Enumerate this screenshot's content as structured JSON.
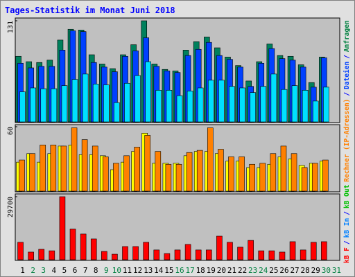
{
  "title": "Tages-Statistik im Monat Juni 2018",
  "legend": [
    {
      "text": "kB F",
      "color": "#ff0000"
    },
    {
      "text": "/",
      "color": "#0000ff"
    },
    {
      "text": "kB In",
      "color": "#0080ff"
    },
    {
      "text": "/",
      "color": "#0000ff"
    },
    {
      "text": "kB Out",
      "color": "#00c000"
    },
    {
      "text": "Rechner (IP-Adressen)",
      "color": "#ff8000"
    },
    {
      "text": "/",
      "color": "#0000ff"
    },
    {
      "text": "Dateien",
      "color": "#0040ff"
    },
    {
      "text": "/",
      "color": "#0000ff"
    },
    {
      "text": "Anfragen",
      "color": "#008040"
    }
  ],
  "chart_data": [
    {
      "type": "bar",
      "ylim": [
        0,
        131
      ],
      "yticks": [
        131
      ],
      "series": [
        {
          "name": "Anfragen",
          "color": "#00805c",
          "values": [
            85,
            78,
            77,
            80,
            106,
            120,
            119,
            87,
            75,
            69,
            87,
            100,
            131,
            75,
            68,
            66,
            93,
            104,
            110,
            96,
            84,
            73,
            53,
            78,
            101,
            86,
            85,
            74,
            51,
            84,
            null
          ]
        },
        {
          "name": "Dateien",
          "color": "#0040ff",
          "values": [
            76,
            70,
            72,
            72,
            93,
            118,
            117,
            77,
            71,
            65,
            85,
            92,
            109,
            72,
            66,
            64,
            86,
            94,
            103,
            86,
            81,
            71,
            46,
            76,
            95,
            82,
            80,
            71,
            45,
            83,
            null
          ]
        },
        {
          "color": "#00e0ff",
          "values": [
            39,
            44,
            43,
            43,
            47,
            55,
            62,
            49,
            48,
            25,
            50,
            60,
            78,
            41,
            41,
            34,
            40,
            44,
            54,
            54,
            46,
            44,
            38,
            46,
            62,
            42,
            47,
            41,
            27,
            45,
            null
          ]
        }
      ]
    },
    {
      "type": "bar",
      "ylim": [
        0,
        60
      ],
      "yticks": [
        60
      ],
      "series": [
        {
          "color": "#ffff00",
          "values": [
            27,
            35,
            27,
            35,
            42,
            43,
            34,
            34,
            33,
            20,
            27,
            37,
            54,
            26,
            26,
            26,
            33,
            37,
            37,
            35,
            28,
            28,
            22,
            22,
            25,
            32,
            30,
            24,
            26,
            28,
            null
          ]
        },
        {
          "name": "Rechner (IP-Adressen)",
          "color": "#ff8000",
          "values": [
            29,
            35,
            43,
            43,
            42,
            59,
            48,
            42,
            32,
            26,
            33,
            41,
            52,
            37,
            25,
            25,
            36,
            38,
            59,
            39,
            32,
            32,
            25,
            26,
            35,
            42,
            35,
            22,
            26,
            29,
            null
          ]
        }
      ]
    },
    {
      "type": "bar",
      "ylim": [
        0,
        29700
      ],
      "yticks": [
        29700
      ],
      "categories": [
        "1",
        "2",
        "3",
        "4",
        "5",
        "6",
        "7",
        "8",
        "9",
        "10",
        "11",
        "12",
        "13",
        "14",
        "15",
        "16",
        "17",
        "18",
        "19",
        "20",
        "21",
        "22",
        "23",
        "24",
        "25",
        "26",
        "27",
        "28",
        "29",
        "30",
        "31"
      ],
      "category_colors": [
        "#000000",
        "#008040",
        "#008040",
        "#000000",
        "#000000",
        "#000000",
        "#000000",
        "#000000",
        "#008040",
        "#008040",
        "#000000",
        "#000000",
        "#000000",
        "#000000",
        "#000000",
        "#008040",
        "#008040",
        "#000000",
        "#000000",
        "#000000",
        "#000000",
        "#000000",
        "#008040",
        "#008040",
        "#000000",
        "#000000",
        "#000000",
        "#000000",
        "#000000",
        "#008040",
        "#008040"
      ],
      "series": [
        {
          "name": "kB F",
          "color": "#ff0000",
          "values": [
            8200,
            3600,
            4900,
            4200,
            29700,
            14400,
            12100,
            9800,
            3900,
            2600,
            6200,
            6200,
            8200,
            4600,
            2900,
            4600,
            7200,
            4600,
            4600,
            11100,
            8200,
            5900,
            9100,
            4200,
            4200,
            3600,
            8500,
            4600,
            8200,
            8500,
            null
          ]
        }
      ]
    }
  ]
}
